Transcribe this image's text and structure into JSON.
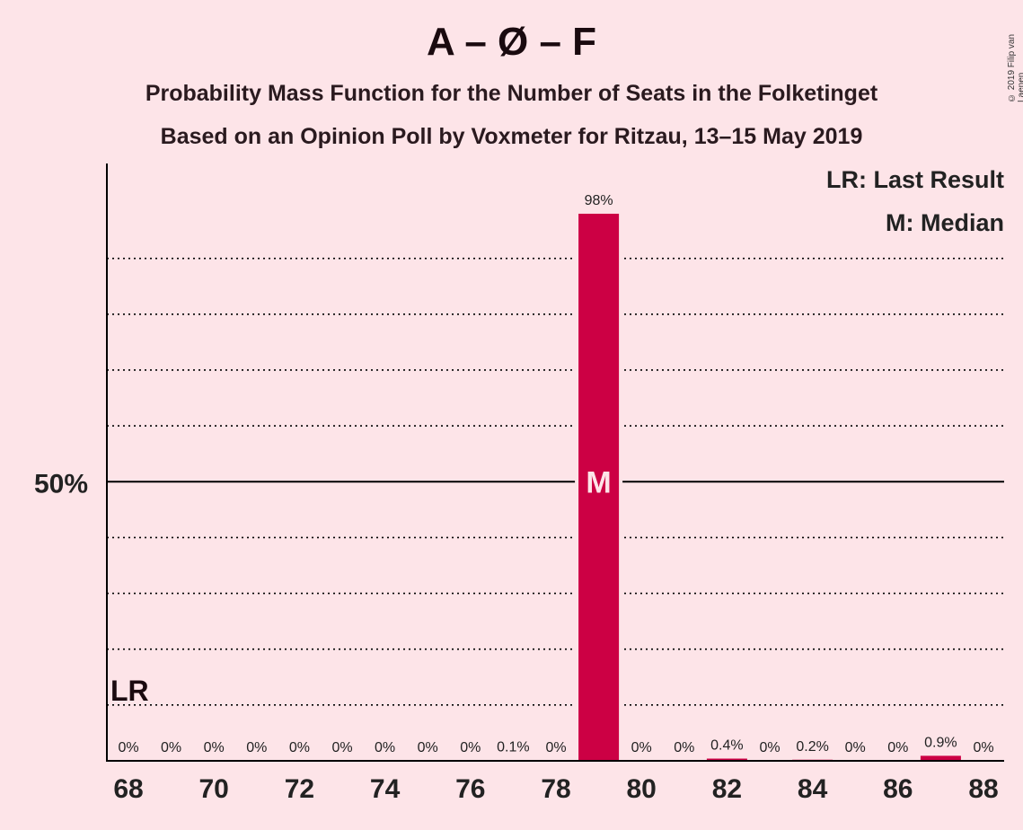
{
  "title": "A – Ø – F",
  "subtitle_1": "Probability Mass Function for the Number of Seats in the Folketinget",
  "subtitle_2": "Based on an Opinion Poll by Voxmeter for Ritzau, 13–15 May 2019",
  "copyright": "© 2019 Filip van Laenen",
  "legend": {
    "last_result": "LR: Last Result",
    "median": "M: Median"
  },
  "markers": {
    "last_result_label": "LR",
    "last_result_seat": 68,
    "median_label": "M",
    "median_seat": 79
  },
  "colors": {
    "background": "#FDE4E8",
    "bar": "#CC0044",
    "axis": "#000000",
    "grid": "#000000"
  },
  "chart_data": {
    "type": "bar",
    "x": [
      68,
      69,
      70,
      71,
      72,
      73,
      74,
      75,
      76,
      77,
      78,
      79,
      80,
      81,
      82,
      83,
      84,
      85,
      86,
      87,
      88
    ],
    "values": [
      0,
      0,
      0,
      0,
      0,
      0,
      0,
      0,
      0,
      0.1,
      0,
      98,
      0,
      0,
      0.4,
      0,
      0.2,
      0,
      0,
      0.9,
      0
    ],
    "labels": [
      "0%",
      "0%",
      "0%",
      "0%",
      "0%",
      "0%",
      "0%",
      "0%",
      "0%",
      "0.1%",
      "0%",
      "98%",
      "0%",
      "0%",
      "0.4%",
      "0%",
      "0.2%",
      "0%",
      "0%",
      "0.9%",
      "0%"
    ],
    "x_ticks": [
      68,
      70,
      72,
      74,
      76,
      78,
      80,
      82,
      84,
      86,
      88
    ],
    "y_ticks": [
      {
        "value": 50,
        "label": "50%"
      }
    ],
    "gridlines": [
      10,
      20,
      30,
      40,
      60,
      70,
      80,
      90
    ],
    "ylim": [
      0,
      107
    ],
    "legend_position": "top-right",
    "unit": "%"
  }
}
